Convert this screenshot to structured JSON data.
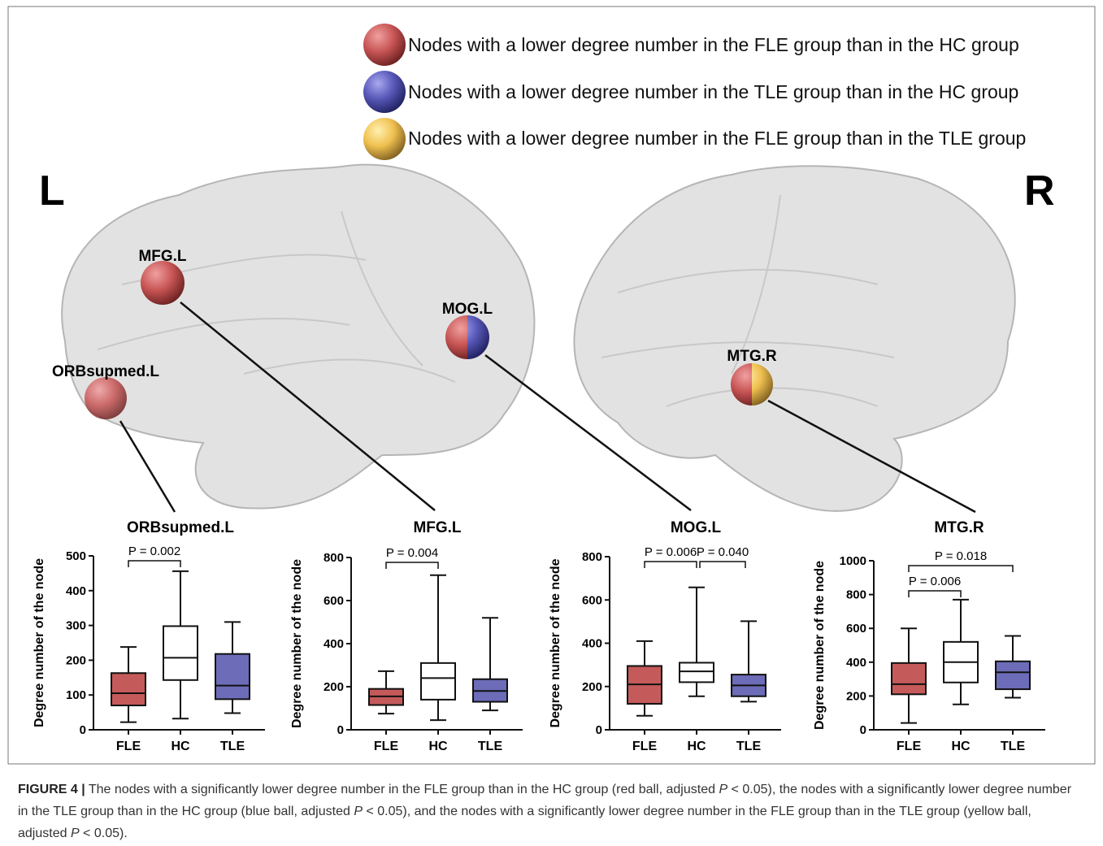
{
  "legend": [
    "Nodes with a lower degree number in the FLE group than in the HC group",
    "Nodes with a lower degree number in the TLE group than in the HC group",
    "Nodes with a lower degree number in the FLE group than in the TLE group"
  ],
  "hemispheres": [
    "L",
    "R"
  ],
  "nodes": [
    "MFG.L",
    "ORBsupmed.L",
    "MOG.L",
    "MTG.R"
  ],
  "chart_data": [
    {
      "type": "box",
      "title": "ORBsupmed.L",
      "y_label": "Degree number of the node",
      "categories": [
        "FLE",
        "HC",
        "TLE"
      ],
      "colors": [
        "#c55a5a",
        "#ffffff",
        "#6c6cb8"
      ],
      "boxes": [
        {
          "min": 22,
          "q1": 70,
          "median": 105,
          "q3": 163,
          "max": 238
        },
        {
          "min": 32,
          "q1": 143,
          "median": 207,
          "q3": 298,
          "max": 456
        },
        {
          "min": 48,
          "q1": 88,
          "median": 127,
          "q3": 218,
          "max": 310
        }
      ],
      "comparisons": [
        {
          "between": [
            "FLE",
            "HC"
          ],
          "label": "P = 0.002"
        }
      ],
      "ylim": [
        0,
        500
      ],
      "yticks": [
        0,
        100,
        200,
        300,
        400,
        500
      ]
    },
    {
      "type": "box",
      "title": "MFG.L",
      "y_label": "Degree number of the node",
      "categories": [
        "FLE",
        "HC",
        "TLE"
      ],
      "colors": [
        "#c55a5a",
        "#ffffff",
        "#6c6cb8"
      ],
      "boxes": [
        {
          "min": 75,
          "q1": 115,
          "median": 155,
          "q3": 190,
          "max": 272
        },
        {
          "min": 45,
          "q1": 140,
          "median": 240,
          "q3": 310,
          "max": 718
        },
        {
          "min": 90,
          "q1": 130,
          "median": 180,
          "q3": 235,
          "max": 520
        }
      ],
      "comparisons": [
        {
          "between": [
            "FLE",
            "HC"
          ],
          "label": "P = 0.004"
        }
      ],
      "ylim": [
        0,
        800
      ],
      "yticks": [
        0,
        200,
        400,
        600,
        800
      ]
    },
    {
      "type": "box",
      "title": "MOG.L",
      "y_label": "Degree number of the node",
      "categories": [
        "FLE",
        "HC",
        "TLE"
      ],
      "colors": [
        "#c55a5a",
        "#ffffff",
        "#6c6cb8"
      ],
      "boxes": [
        {
          "min": 65,
          "q1": 120,
          "median": 210,
          "q3": 295,
          "max": 410
        },
        {
          "min": 155,
          "q1": 220,
          "median": 270,
          "q3": 310,
          "max": 658
        },
        {
          "min": 130,
          "q1": 155,
          "median": 205,
          "q3": 255,
          "max": 502
        }
      ],
      "comparisons": [
        {
          "between": [
            "FLE",
            "HC"
          ],
          "label": "P = 0.006"
        },
        {
          "between": [
            "HC",
            "TLE"
          ],
          "label": "P = 0.040"
        }
      ],
      "ylim": [
        0,
        800
      ],
      "yticks": [
        0,
        200,
        400,
        600,
        800
      ]
    },
    {
      "type": "box",
      "title": "MTG.R",
      "y_label": "Degree number of the node",
      "categories": [
        "FLE",
        "HC",
        "TLE"
      ],
      "colors": [
        "#c55a5a",
        "#ffffff",
        "#6c6cb8"
      ],
      "boxes": [
        {
          "min": 40,
          "q1": 210,
          "median": 270,
          "q3": 395,
          "max": 600
        },
        {
          "min": 150,
          "q1": 280,
          "median": 400,
          "q3": 520,
          "max": 770
        },
        {
          "min": 190,
          "q1": 240,
          "median": 340,
          "q3": 405,
          "max": 555
        }
      ],
      "comparisons": [
        {
          "between": [
            "FLE",
            "HC"
          ],
          "label": "P = 0.006"
        },
        {
          "between": [
            "FLE",
            "TLE"
          ],
          "label": "P = 0.018"
        }
      ],
      "ylim": [
        0,
        1000
      ],
      "yticks": [
        0,
        200,
        400,
        600,
        800,
        1000
      ]
    }
  ],
  "caption": {
    "label": "FIGURE 4 |",
    "parts": [
      " The nodes with a significantly lower degree number in the FLE group than in the HC group (red ball, adjusted ",
      "P",
      " < 0.05), the nodes with a significantly lower degree number in the TLE group than in the HC group (blue ball, adjusted ",
      "P",
      " < 0.05), and the nodes with a significantly lower degree number in the FLE group than in the TLE group (yellow ball, adjusted ",
      "P",
      " < 0.05)."
    ]
  }
}
